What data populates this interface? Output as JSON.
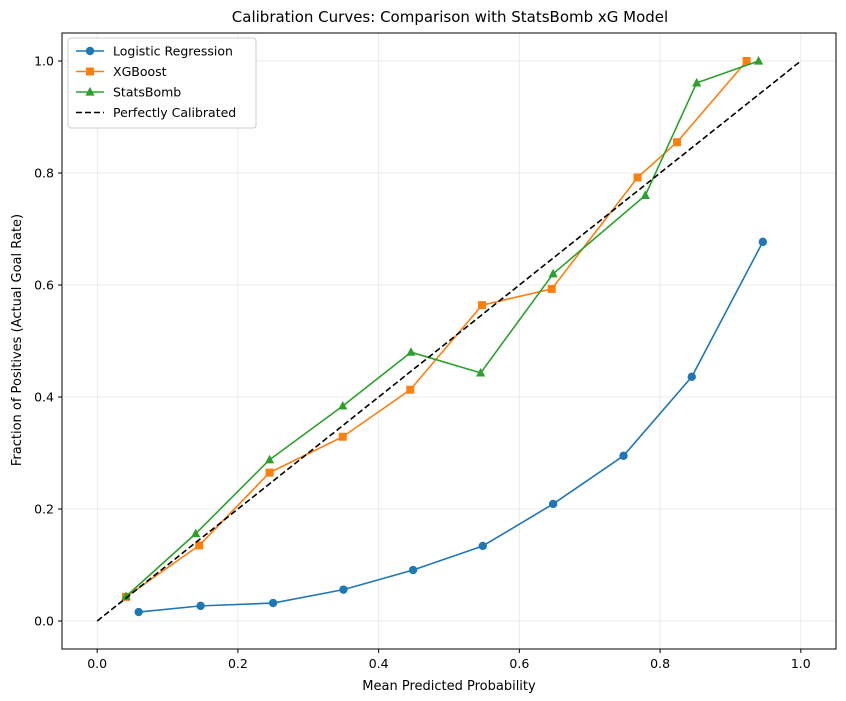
{
  "chart_data": {
    "type": "line",
    "title": "Calibration Curves: Comparison with StatsBomb xG Model",
    "xlabel": "Mean Predicted Probability",
    "ylabel": "Fraction of Positives (Actual Goal Rate)",
    "xlim": [
      -0.05,
      1.05
    ],
    "ylim": [
      -0.05,
      1.05
    ],
    "xticks": [
      "0.0",
      "0.2",
      "0.4",
      "0.6",
      "0.8",
      "1.0"
    ],
    "yticks": [
      "0.0",
      "0.2",
      "0.4",
      "0.6",
      "0.8",
      "1.0"
    ],
    "grid": true,
    "legend_position": "upper-left",
    "series": [
      {
        "name": "Logistic Regression",
        "color": "#1f77b4",
        "marker": "circle",
        "x": [
          0.059,
          0.147,
          0.25,
          0.35,
          0.449,
          0.548,
          0.648,
          0.748,
          0.845,
          0.946
        ],
        "y": [
          0.016,
          0.027,
          0.032,
          0.056,
          0.091,
          0.134,
          0.209,
          0.295,
          0.436,
          0.677
        ]
      },
      {
        "name": "XGBoost",
        "color": "#ff7f0e",
        "marker": "square",
        "x": [
          0.041,
          0.145,
          0.245,
          0.349,
          0.445,
          0.547,
          0.646,
          0.768,
          0.824,
          0.923
        ],
        "y": [
          0.043,
          0.135,
          0.265,
          0.329,
          0.413,
          0.564,
          0.593,
          0.792,
          0.855,
          1.0
        ]
      },
      {
        "name": "StatsBomb",
        "color": "#2ca02c",
        "marker": "triangle",
        "x": [
          0.041,
          0.14,
          0.245,
          0.349,
          0.446,
          0.545,
          0.648,
          0.779,
          0.852,
          0.94
        ],
        "y": [
          0.044,
          0.156,
          0.288,
          0.384,
          0.48,
          0.443,
          0.62,
          0.76,
          0.961,
          1.0
        ]
      },
      {
        "name": "Perfectly Calibrated",
        "color": "#000000",
        "marker": "none",
        "dashed": true,
        "x": [
          0.0,
          1.0
        ],
        "y": [
          0.0,
          1.0
        ]
      }
    ]
  }
}
